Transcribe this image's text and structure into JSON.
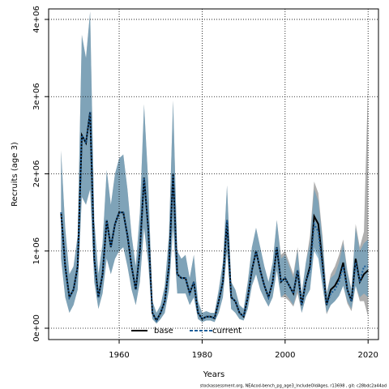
{
  "chart_data": {
    "type": "line",
    "xlabel": "Years",
    "ylabel": "Recruits (age 3)",
    "caption": "stockassessment.org, NEAcod-bench_pg_age3_IncludeOldAges, r13698 , git: c28bdc2a44ad",
    "x": [
      1946,
      1947,
      1948,
      1949,
      1950,
      1951,
      1952,
      1953,
      1954,
      1955,
      1956,
      1957,
      1958,
      1959,
      1960,
      1961,
      1962,
      1963,
      1964,
      1965,
      1966,
      1967,
      1968,
      1969,
      1970,
      1971,
      1972,
      1973,
      1974,
      1975,
      1976,
      1977,
      1978,
      1979,
      1980,
      1981,
      1982,
      1983,
      1984,
      1985,
      1986,
      1987,
      1988,
      1989,
      1990,
      1991,
      1992,
      1993,
      1994,
      1995,
      1996,
      1997,
      1998,
      1999,
      2000,
      2001,
      2002,
      2003,
      2004,
      2005,
      2006,
      2007,
      2008,
      2009,
      2010,
      2011,
      2012,
      2013,
      2014,
      2015,
      2016,
      2017,
      2018,
      2019,
      2020
    ],
    "xlim": [
      1943,
      2022.5
    ],
    "xticks": [
      1960,
      1980,
      2000,
      2020
    ],
    "ylim": [
      -147000,
      4136000
    ],
    "yticks": [
      {
        "value": 0,
        "label": "0e+00"
      },
      {
        "value": 1000000,
        "label": "1e+06"
      },
      {
        "value": 2000000,
        "label": "2e+06"
      },
      {
        "value": 3000000,
        "label": "3e+06"
      },
      {
        "value": 4000000,
        "label": "4e+06"
      }
    ],
    "grid": true,
    "legend": "bottom",
    "series": [
      {
        "name": "base",
        "color": "#000000",
        "band_color": "rgba(110,110,110,0.55)",
        "dash": false,
        "values": [
          1500000.0,
          800000.0,
          400000.0,
          500000.0,
          800000.0,
          2500000.0,
          2400000.0,
          2800000.0,
          900000.0,
          400000.0,
          700000.0,
          1400000.0,
          1050000.0,
          1350000.0,
          1500000.0,
          1500000.0,
          1200000.0,
          800000.0,
          500000.0,
          1000000.0,
          1950000.0,
          1300000.0,
          200000.0,
          100000.0,
          200000.0,
          350000.0,
          800000.0,
          2000000.0,
          700000.0,
          650000.0,
          650000.0,
          450000.0,
          600000.0,
          200000.0,
          120000.0,
          150000.0,
          150000.0,
          130000.0,
          350000.0,
          600000.0,
          1400000.0,
          400000.0,
          350000.0,
          200000.0,
          150000.0,
          400000.0,
          750000.0,
          1000000.0,
          750000.0,
          550000.0,
          400000.0,
          600000.0,
          1050000.0,
          600000.0,
          650000.0,
          550000.0,
          450000.0,
          750000.0,
          300000.0,
          600000.0,
          800000.0,
          1450000.0,
          1350000.0,
          850000.0,
          300000.0,
          500000.0,
          550000.0,
          650000.0,
          850000.0,
          500000.0,
          350000.0,
          900000.0,
          600000.0,
          700000.0,
          750000.0
        ],
        "lower": [
          900000.0,
          400000.0,
          200000.0,
          300000.0,
          500000.0,
          1700000.0,
          1600000.0,
          1800000.0,
          600000.0,
          250000.0,
          450000.0,
          900000.0,
          700000.0,
          900000.0,
          1000000.0,
          1050000.0,
          800000.0,
          500000.0,
          300000.0,
          600000.0,
          1300000.0,
          850000.0,
          120000.0,
          60000.0,
          120000.0,
          200000.0,
          500000.0,
          1300000.0,
          450000.0,
          450000.0,
          450000.0,
          300000.0,
          400000.0,
          120000.0,
          80000.0,
          100000.0,
          100000.0,
          80000.0,
          200000.0,
          400000.0,
          1000000.0,
          250000.0,
          200000.0,
          120000.0,
          100000.0,
          250000.0,
          550000.0,
          700000.0,
          500000.0,
          380000.0,
          280000.0,
          400000.0,
          750000.0,
          400000.0,
          400000.0,
          350000.0,
          280000.0,
          450000.0,
          200000.0,
          400000.0,
          500000.0,
          1050000.0,
          950000.0,
          550000.0,
          180000.0,
          300000.0,
          350000.0,
          420000.0,
          550000.0,
          320000.0,
          220000.0,
          550000.0,
          350000.0,
          350000.0,
          150000.0
        ],
        "upper": [
          2300000.0,
          1300000.0,
          700000.0,
          800000.0,
          1200000.0,
          3800000.0,
          3500000.0,
          4100000.0,
          1400000.0,
          700000.0,
          1100000.0,
          2050000.0,
          1600000.0,
          2000000.0,
          2200000.0,
          2250000.0,
          1800000.0,
          1200000.0,
          800000.0,
          1500000.0,
          2900000.0,
          1900000.0,
          350000.0,
          200000.0,
          300000.0,
          550000.0,
          1200000.0,
          2950000.0,
          1000000.0,
          900000.0,
          950000.0,
          650000.0,
          950000.0,
          350000.0,
          200000.0,
          220000.0,
          200000.0,
          200000.0,
          500000.0,
          850000.0,
          1850000.0,
          600000.0,
          500000.0,
          300000.0,
          250000.0,
          600000.0,
          1050000.0,
          1300000.0,
          1050000.0,
          800000.0,
          600000.0,
          850000.0,
          1400000.0,
          950000.0,
          1000000.0,
          850000.0,
          700000.0,
          1050000.0,
          450000.0,
          850000.0,
          1200000.0,
          1900000.0,
          1750000.0,
          1200000.0,
          450000.0,
          700000.0,
          800000.0,
          950000.0,
          1150000.0,
          750000.0,
          500000.0,
          1350000.0,
          1050000.0,
          1250000.0,
          3200000.0
        ]
      },
      {
        "name": "current",
        "color": "#1f5f99",
        "band_color": "rgba(95,155,190,0.6)",
        "dash": true,
        "values": [
          1500000.0,
          800000.0,
          400000.0,
          500000.0,
          800000.0,
          2500000.0,
          2400000.0,
          2800000.0,
          900000.0,
          400000.0,
          700000.0,
          1400000.0,
          1050000.0,
          1350000.0,
          1500000.0,
          1500000.0,
          1200000.0,
          800000.0,
          500000.0,
          1000000.0,
          1950000.0,
          1300000.0,
          200000.0,
          100000.0,
          200000.0,
          350000.0,
          800000.0,
          2000000.0,
          700000.0,
          650000.0,
          650000.0,
          450000.0,
          600000.0,
          200000.0,
          120000.0,
          150000.0,
          150000.0,
          130000.0,
          350000.0,
          600000.0,
          1400000.0,
          400000.0,
          350000.0,
          200000.0,
          150000.0,
          400000.0,
          750000.0,
          1000000.0,
          750000.0,
          550000.0,
          400000.0,
          600000.0,
          1050000.0,
          600000.0,
          650000.0,
          550000.0,
          450000.0,
          750000.0,
          300000.0,
          600000.0,
          750000.0,
          1350000.0,
          1250000.0,
          800000.0,
          300000.0,
          450000.0,
          500000.0,
          600000.0,
          800000.0,
          500000.0,
          350000.0,
          850000.0,
          600000.0,
          800000.0,
          800000.0
        ],
        "lower": [
          900000.0,
          400000.0,
          200000.0,
          300000.0,
          500000.0,
          1700000.0,
          1600000.0,
          1800000.0,
          600000.0,
          250000.0,
          450000.0,
          900000.0,
          700000.0,
          900000.0,
          1000000.0,
          1050000.0,
          800000.0,
          500000.0,
          300000.0,
          600000.0,
          1300000.0,
          850000.0,
          120000.0,
          60000.0,
          120000.0,
          200000.0,
          500000.0,
          1300000.0,
          450000.0,
          450000.0,
          450000.0,
          300000.0,
          400000.0,
          120000.0,
          80000.0,
          100000.0,
          100000.0,
          80000.0,
          200000.0,
          400000.0,
          1000000.0,
          250000.0,
          200000.0,
          120000.0,
          100000.0,
          250000.0,
          550000.0,
          700000.0,
          500000.0,
          380000.0,
          280000.0,
          400000.0,
          750000.0,
          400000.0,
          450000.0,
          380000.0,
          300000.0,
          500000.0,
          200000.0,
          400000.0,
          500000.0,
          1000000.0,
          900000.0,
          550000.0,
          200000.0,
          300000.0,
          350000.0,
          420000.0,
          550000.0,
          350000.0,
          250000.0,
          550000.0,
          400000.0,
          450000.0,
          400000.0
        ],
        "upper": [
          2300000.0,
          1300000.0,
          700000.0,
          800000.0,
          1200000.0,
          3800000.0,
          3500000.0,
          4100000.0,
          1400000.0,
          700000.0,
          1100000.0,
          2050000.0,
          1600000.0,
          2000000.0,
          2200000.0,
          2250000.0,
          1800000.0,
          1200000.0,
          800000.0,
          1500000.0,
          2900000.0,
          1900000.0,
          350000.0,
          200000.0,
          300000.0,
          550000.0,
          1200000.0,
          2950000.0,
          1000000.0,
          900000.0,
          950000.0,
          650000.0,
          950000.0,
          350000.0,
          200000.0,
          220000.0,
          200000.0,
          200000.0,
          500000.0,
          850000.0,
          1850000.0,
          600000.0,
          500000.0,
          300000.0,
          250000.0,
          600000.0,
          1050000.0,
          1300000.0,
          1050000.0,
          800000.0,
          600000.0,
          850000.0,
          1400000.0,
          900000.0,
          950000.0,
          800000.0,
          650000.0,
          1000000.0,
          450000.0,
          850000.0,
          1100000.0,
          1800000.0,
          1650000.0,
          1150000.0,
          450000.0,
          650000.0,
          700000.0,
          850000.0,
          1100000.0,
          720000.0,
          500000.0,
          1300000.0,
          1000000.0,
          1100000.0,
          1150000.0
        ]
      }
    ]
  }
}
